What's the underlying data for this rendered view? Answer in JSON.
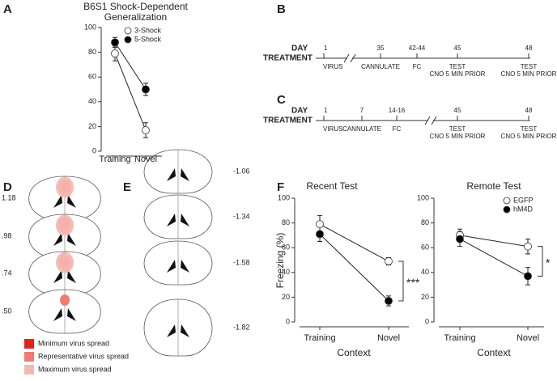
{
  "panel_labels": [
    "A",
    "B",
    "C",
    "D",
    "E",
    "F"
  ],
  "timelines": [
    {
      "day_label": "DAY",
      "treatment_label": "TREATMENT",
      "steps": [
        {
          "day": "1",
          "event": "VIRUS"
        },
        {
          "day": "35",
          "event": "CANNULATE"
        },
        {
          "day": "42-44",
          "event": "FC"
        },
        {
          "day": "45",
          "event": "TEST",
          "note": "CNO 5 MIN PRIOR"
        },
        {
          "day": "48",
          "event": "TEST",
          "note": "CNO 5 MIN PRIOR"
        }
      ]
    },
    {
      "day_label": "DAY",
      "treatment_label": "TREATMENT",
      "steps": [
        {
          "day": "1",
          "event": "VIRUS"
        },
        {
          "day": "7",
          "event": "CANNULATE"
        },
        {
          "day": "14-16",
          "event": "FC"
        },
        {
          "day": "45",
          "event": "TEST",
          "note": "CNO 5 MIN PRIOR"
        },
        {
          "day": "48",
          "event": "TEST",
          "note": "CNO 5 MIN PRIOR"
        }
      ]
    }
  ],
  "sections_d": {
    "levels": [
      "1.18",
      ".98",
      ".74",
      ".50"
    ],
    "legend": [
      {
        "name": "Minimum virus spread",
        "color": "#e3241b"
      },
      {
        "name": "Representative virus spread",
        "color": "#ef7b73"
      },
      {
        "name": "Maximum virus spread",
        "color": "#f4b8b0"
      }
    ]
  },
  "sections_e": {
    "levels": [
      "-1.06",
      "-1.34",
      "-1.58",
      "-1.82"
    ]
  },
  "chart_data": [
    {
      "type": "line",
      "title": "B6S1 Shock-Dependent Generalization",
      "categories": [
        "Training",
        "Novel"
      ],
      "series": [
        {
          "name": "3-Shock",
          "color": "#ffffff",
          "values": [
            79,
            17
          ],
          "errors": [
            6,
            6
          ]
        },
        {
          "name": "5-Shock",
          "color": "#000000",
          "values": [
            88,
            50
          ],
          "errors": [
            4,
            5
          ]
        }
      ],
      "ylim": [
        0,
        100
      ],
      "yticks": [
        0,
        20,
        40,
        60,
        80,
        100
      ],
      "legend": "upper right"
    },
    {
      "type": "line",
      "title": "Recent Test",
      "ylabel": "Freezing (%)",
      "xlabel": "Context",
      "categories": [
        "Training",
        "Novel"
      ],
      "series": [
        {
          "name": "EGFP",
          "color": "#ffffff",
          "values": [
            79,
            49
          ],
          "errors": [
            7,
            3
          ]
        },
        {
          "name": "hM4D",
          "color": "#000000",
          "values": [
            71,
            17
          ],
          "errors": [
            6,
            4
          ]
        }
      ],
      "ylim": [
        0,
        100
      ],
      "yticks": [
        0,
        20,
        40,
        60,
        80,
        100
      ],
      "significance": "***"
    },
    {
      "type": "line",
      "title": "Remote Test",
      "xlabel": "Context",
      "categories": [
        "Training",
        "Novel"
      ],
      "series": [
        {
          "name": "EGFP",
          "color": "#ffffff",
          "values": [
            70,
            61
          ],
          "errors": [
            5,
            6
          ]
        },
        {
          "name": "hM4D",
          "color": "#000000",
          "values": [
            67,
            37
          ],
          "errors": [
            6,
            7
          ]
        }
      ],
      "ylim": [
        0,
        100
      ],
      "yticks": [
        0,
        20,
        40,
        60,
        80,
        100
      ],
      "legend": "upper right",
      "significance": "*"
    }
  ]
}
